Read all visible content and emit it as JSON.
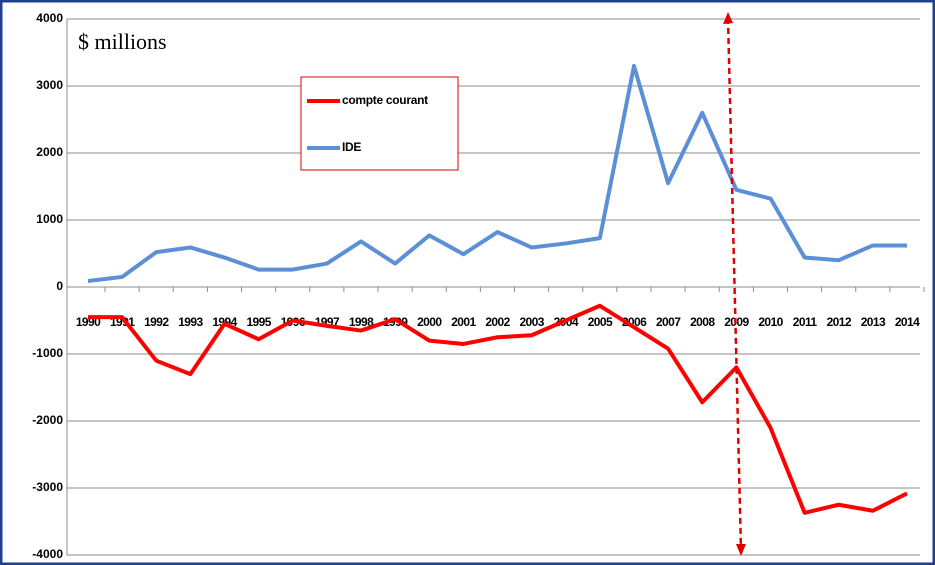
{
  "chart_data": {
    "type": "line",
    "annotation": "$ millions",
    "categories": [
      "1990",
      "1991",
      "1992",
      "1993",
      "1994",
      "1995",
      "1996",
      "1997",
      "1998",
      "1999",
      "2000",
      "2001",
      "2002",
      "2003",
      "2004",
      "2005",
      "2006",
      "2007",
      "2008",
      "2009",
      "2010",
      "2011",
      "2012",
      "2013",
      "2014"
    ],
    "series": [
      {
        "name": "compte courant",
        "color": "#ff0000",
        "values": [
          -450,
          -450,
          -1100,
          -1300,
          -550,
          -780,
          -500,
          -580,
          -650,
          -480,
          -800,
          -850,
          -750,
          -720,
          -500,
          -280,
          -600,
          -920,
          -1720,
          -1200,
          -2100,
          -3370,
          -3250,
          -3340,
          -3080
        ]
      },
      {
        "name": "IDE",
        "color": "#5b8fd6",
        "values": [
          90,
          150,
          520,
          590,
          440,
          260,
          260,
          350,
          680,
          350,
          770,
          490,
          820,
          590,
          650,
          730,
          3300,
          1550,
          2600,
          1450,
          1320,
          440,
          400,
          620,
          620
        ]
      }
    ],
    "ylim": [
      -4000,
      4000
    ],
    "yticks": [
      -4000,
      -3000,
      -2000,
      -1000,
      0,
      1000,
      2000,
      3000,
      4000
    ],
    "grid": true
  }
}
